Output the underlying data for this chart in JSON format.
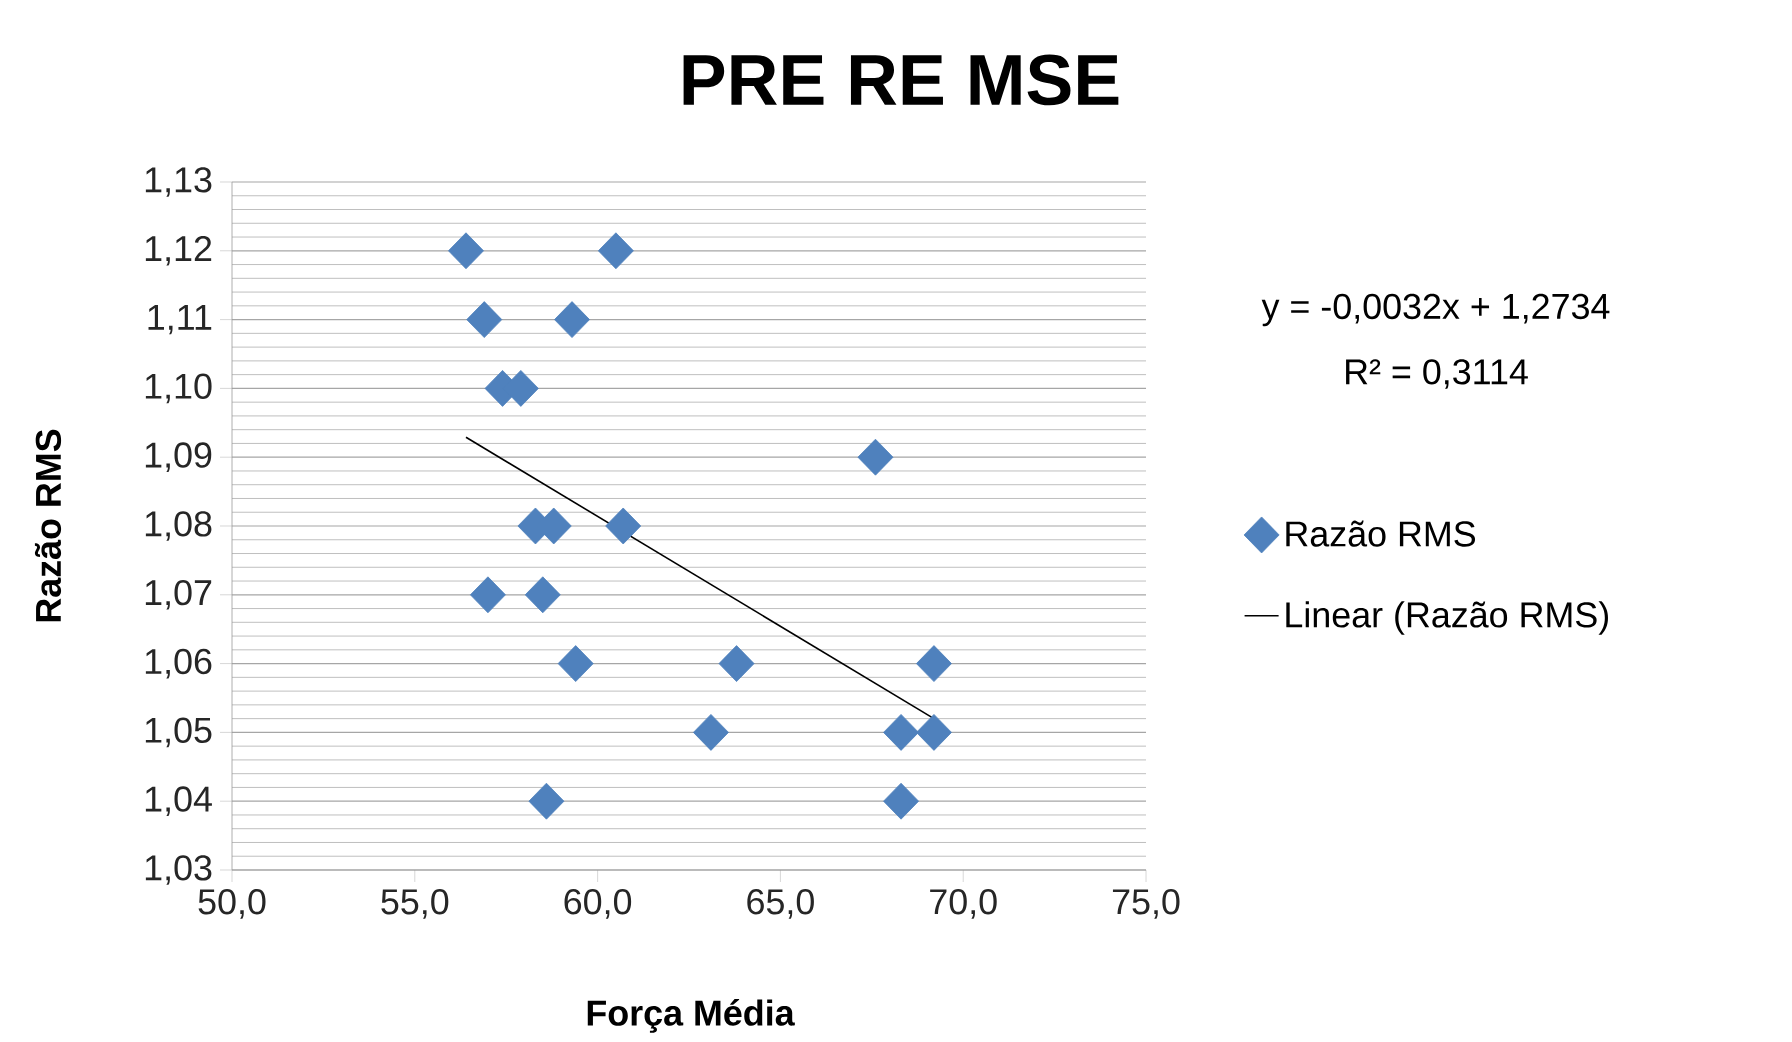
{
  "chart_data": {
    "type": "scatter",
    "title": "PRE RE MSE",
    "xlabel": "Força Média",
    "ylabel": "Razão RMS",
    "annotations": [
      "y = -0,0032x + 1,2734",
      "R² = 0,3114"
    ],
    "series": [
      {
        "name": "Razão RMS",
        "color": "#4f81bd",
        "marker": "diamond",
        "x": [
          56.4,
          60.5,
          56.9,
          59.3,
          57.4,
          57.9,
          67.6,
          58.3,
          58.8,
          60.7,
          57.0,
          58.5,
          59.4,
          63.8,
          69.2,
          63.1,
          68.3,
          69.2,
          58.6,
          68.3
        ],
        "values": [
          1.12,
          1.12,
          1.11,
          1.11,
          1.1,
          1.1,
          1.09,
          1.08,
          1.08,
          1.08,
          1.07,
          1.07,
          1.06,
          1.06,
          1.06,
          1.05,
          1.05,
          1.05,
          1.04,
          1.04
        ]
      },
      {
        "name": "Linear (Razão RMS)",
        "type": "line",
        "color": "#000000",
        "marker": "none",
        "x": [
          56.4,
          69.2
        ],
        "values": [
          1.0929,
          1.052
        ]
      }
    ],
    "xlim": [
      50,
      75
    ],
    "ylim": [
      1.03,
      1.13
    ],
    "xticks": [
      {
        "value": 50,
        "label": "50,0"
      },
      {
        "value": 55,
        "label": "55,0"
      },
      {
        "value": 60,
        "label": "60,0"
      },
      {
        "value": 65,
        "label": "65,0"
      },
      {
        "value": 70,
        "label": "70,0"
      },
      {
        "value": 75,
        "label": "75,0"
      }
    ],
    "yticks": [
      {
        "value": 1.03,
        "label": "1,03"
      },
      {
        "value": 1.04,
        "label": "1,04"
      },
      {
        "value": 1.05,
        "label": "1,05"
      },
      {
        "value": 1.06,
        "label": "1,06"
      },
      {
        "value": 1.07,
        "label": "1,07"
      },
      {
        "value": 1.08,
        "label": "1,08"
      },
      {
        "value": 1.09,
        "label": "1,09"
      },
      {
        "value": 1.1,
        "label": "1,10"
      },
      {
        "value": 1.11,
        "label": "1,11"
      },
      {
        "value": 1.12,
        "label": "1,12"
      },
      {
        "value": 1.13,
        "label": "1,13"
      }
    ],
    "grid": "y",
    "legend": "right"
  }
}
